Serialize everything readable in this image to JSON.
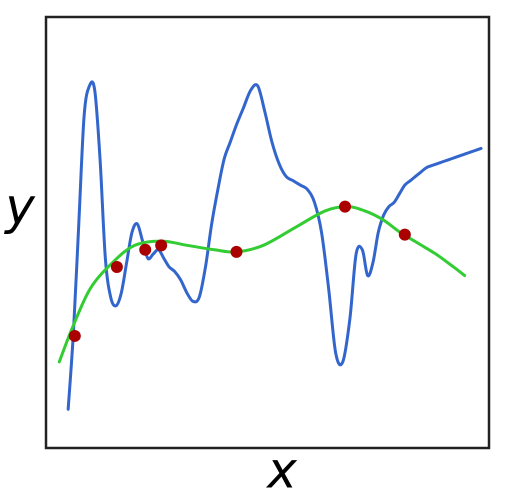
{
  "chart_data": {
    "type": "line",
    "xlabel": "x",
    "ylabel": "y",
    "xlim": [
      0,
      1
    ],
    "ylim": [
      0,
      1
    ],
    "grid": false,
    "legend": "none",
    "series": [
      {
        "color": "#3366cc",
        "style": "line",
        "x": [
          0.05,
          0.062,
          0.074,
          0.086,
          0.098,
          0.11,
          0.122,
          0.134,
          0.146,
          0.158,
          0.17,
          0.182,
          0.194,
          0.206,
          0.218,
          0.23,
          0.242,
          0.254,
          0.266,
          0.278,
          0.29,
          0.304,
          0.318,
          0.332,
          0.346,
          0.36,
          0.374,
          0.388,
          0.402,
          0.416,
          0.43,
          0.446,
          0.462,
          0.478,
          0.494,
          0.51,
          0.526,
          0.542,
          0.558,
          0.574,
          0.59,
          0.606,
          0.622,
          0.638,
          0.654,
          0.67,
          0.686,
          0.7,
          0.714,
          0.726,
          0.738,
          0.75,
          0.762,
          0.774,
          0.786,
          0.798,
          0.81,
          0.822,
          0.834,
          0.846,
          0.858,
          0.87,
          0.884,
          0.898,
          0.912,
          0.926,
          0.94,
          0.954,
          0.968,
          0.982
        ],
        "y": [
          0.09,
          0.27,
          0.52,
          0.77,
          0.84,
          0.83,
          0.67,
          0.44,
          0.35,
          0.33,
          0.36,
          0.43,
          0.5,
          0.52,
          0.48,
          0.44,
          0.45,
          0.46,
          0.44,
          0.42,
          0.41,
          0.39,
          0.36,
          0.34,
          0.35,
          0.42,
          0.52,
          0.6,
          0.67,
          0.71,
          0.75,
          0.79,
          0.83,
          0.84,
          0.78,
          0.71,
          0.66,
          0.63,
          0.62,
          0.61,
          0.6,
          0.57,
          0.5,
          0.37,
          0.22,
          0.2,
          0.3,
          0.45,
          0.46,
          0.4,
          0.43,
          0.5,
          0.54,
          0.56,
          0.57,
          0.59,
          0.61,
          0.62,
          0.63,
          0.64,
          0.65,
          0.655,
          0.66,
          0.665,
          0.67,
          0.675,
          0.68,
          0.685,
          0.69,
          0.695
        ]
      },
      {
        "color": "#33cc33",
        "style": "line",
        "x": [
          0.03,
          0.06,
          0.1,
          0.15,
          0.2,
          0.26,
          0.32,
          0.38,
          0.43,
          0.49,
          0.56,
          0.63,
          0.68,
          0.72,
          0.76,
          0.8,
          0.84,
          0.88,
          0.92,
          0.945
        ],
        "y": [
          0.2,
          0.28,
          0.37,
          0.43,
          0.47,
          0.48,
          0.47,
          0.46,
          0.455,
          0.47,
          0.51,
          0.55,
          0.56,
          0.55,
          0.53,
          0.5,
          0.475,
          0.45,
          0.42,
          0.4
        ]
      },
      {
        "color": "#aa0000",
        "style": "markers",
        "x": [
          0.065,
          0.16,
          0.224,
          0.26,
          0.43,
          0.675,
          0.81
        ],
        "y": [
          0.26,
          0.42,
          0.46,
          0.47,
          0.455,
          0.56,
          0.495
        ]
      }
    ]
  }
}
